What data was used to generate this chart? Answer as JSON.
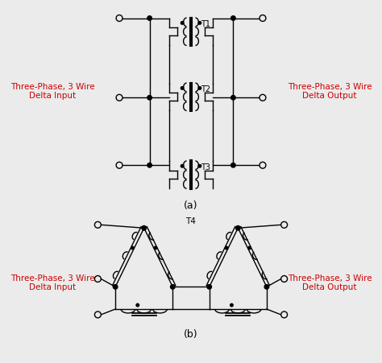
{
  "bg_color": "#ebebeb",
  "line_color": "black",
  "text_color_red": "#cc0000",
  "label_left_a": "Three-Phase, 3 Wire\nDelta Input",
  "label_right_a": "Three-Phase, 3 Wire\nDelta Output",
  "label_left_b": "Three-Phase, 3 Wire\nDelta Input",
  "label_right_b": "Three-Phase, 3 Wire\nDelta Output",
  "caption_a": "(a)",
  "caption_b": "(b)"
}
